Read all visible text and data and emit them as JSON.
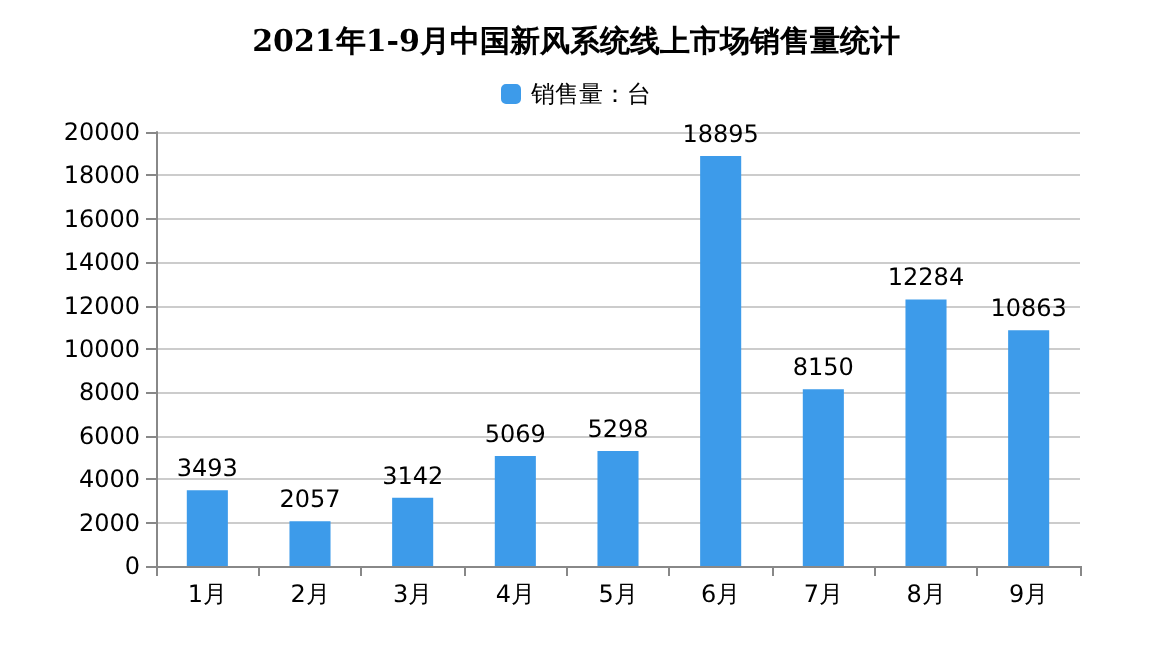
{
  "chart_data": {
    "type": "bar",
    "title": "2021年1-9月中国新风系统线上市场销售量统计",
    "categories": [
      "1月",
      "2月",
      "3月",
      "4月",
      "5月",
      "6月",
      "7月",
      "8月",
      "9月"
    ],
    "series": [
      {
        "name": "销售量：台",
        "color": "#3d9bea",
        "values": [
          3493,
          2057,
          3142,
          5069,
          5298,
          18895,
          8150,
          12284,
          10863
        ]
      }
    ],
    "ylim": [
      0,
      20000
    ],
    "yticks": [
      0,
      2000,
      4000,
      6000,
      8000,
      10000,
      12000,
      14000,
      16000,
      18000,
      20000
    ],
    "grid": "y",
    "legend": "top",
    "data_labels": true
  }
}
